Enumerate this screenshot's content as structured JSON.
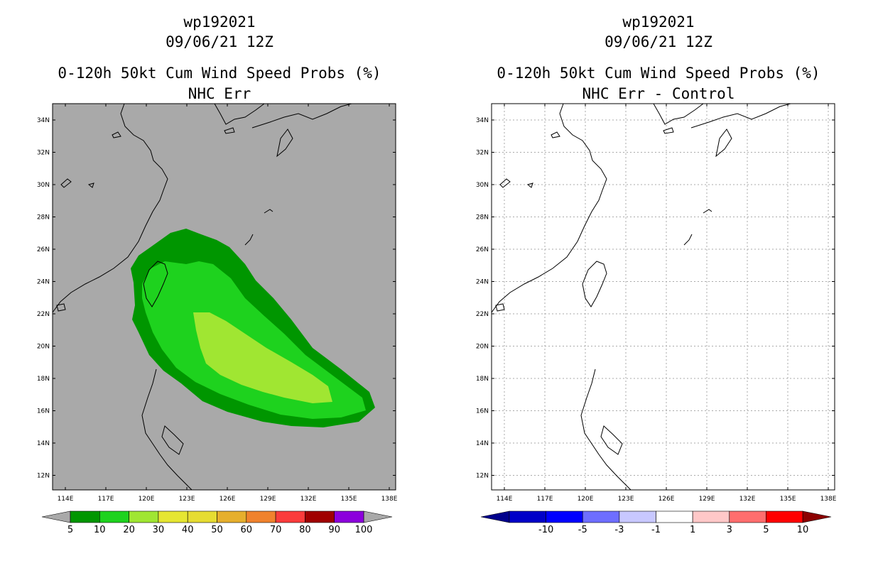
{
  "left_panel": {
    "title_line1": "wp192021",
    "title_line2": "09/06/21 12Z",
    "title_line3": "0-120h 50kt Cum Wind Speed Probs (%)",
    "title_line4": "NHC Err",
    "background_color": "#a9a9a9",
    "colorbar": {
      "labels": [
        "5",
        "10",
        "20",
        "30",
        "40",
        "50",
        "60",
        "70",
        "80",
        "90",
        "100"
      ],
      "colors": [
        "#009600",
        "#1ed21e",
        "#a0e632",
        "#e6e632",
        "#e6dc32",
        "#e6af2d",
        "#f0822d",
        "#fa3c3c",
        "#a00000",
        "#8c00dc"
      ],
      "end_color": "#a9a9a9"
    }
  },
  "right_panel": {
    "title_line1": "wp192021",
    "title_line2": "09/06/21 12Z",
    "title_line3": "0-120h 50kt Cum Wind Speed Probs (%)",
    "title_line4": "NHC Err - Control",
    "background_color": "#ffffff",
    "colorbar": {
      "labels": [
        "-10",
        "-5",
        "-3",
        "-1",
        "1",
        "3",
        "5",
        "10"
      ],
      "colors": [
        "#0000c8",
        "#0000ff",
        "#6e6eff",
        "#c8c8ff",
        "#ffffff",
        "#ffc8c8",
        "#ff6e6e",
        "#ff0000"
      ],
      "end_left_color": "#00008c",
      "end_right_color": "#8c0000"
    }
  },
  "map": {
    "lon_labels": [
      "114E",
      "117E",
      "120E",
      "123E",
      "126E",
      "129E",
      "132E",
      "135E",
      "138E"
    ],
    "lat_labels": [
      "34N",
      "32N",
      "30N",
      "28N",
      "26N",
      "24N",
      "22N",
      "20N",
      "18N",
      "16N",
      "14N",
      "12N"
    ]
  },
  "probability_bands": [
    {
      "label": "5",
      "color": "#009600"
    },
    {
      "label": "10",
      "color": "#1ed21e"
    },
    {
      "label": "20",
      "color": "#a0e632"
    }
  ]
}
